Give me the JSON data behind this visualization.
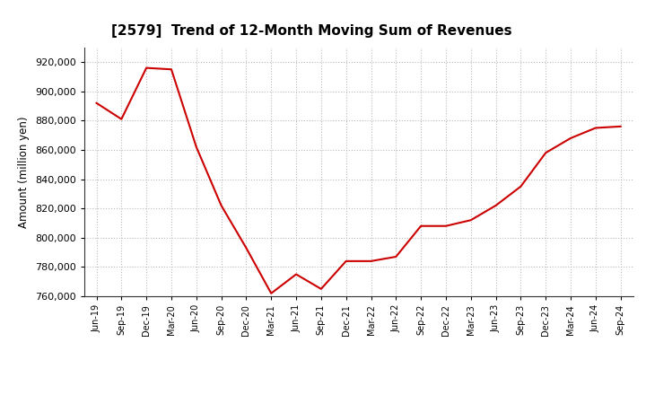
{
  "title": "[2579]  Trend of 12-Month Moving Sum of Revenues",
  "ylabel": "Amount (million yen)",
  "line_color": "#cc0000",
  "background_color": "#ffffff",
  "plot_bg_color": "#ffffff",
  "grid_color": "#bbbbbb",
  "x_labels": [
    "Jun-19",
    "Sep-19",
    "Dec-19",
    "Mar-20",
    "Jun-20",
    "Sep-20",
    "Dec-20",
    "Mar-21",
    "Jun-21",
    "Sep-21",
    "Dec-21",
    "Mar-22",
    "Jun-22",
    "Sep-22",
    "Dec-22",
    "Mar-23",
    "Jun-23",
    "Sep-23",
    "Dec-23",
    "Mar-24",
    "Jun-24",
    "Sep-24"
  ],
  "values": [
    892000,
    881000,
    916000,
    915000,
    862000,
    822000,
    793000,
    762000,
    775000,
    765000,
    784000,
    784000,
    787000,
    808000,
    808000,
    812000,
    822000,
    835000,
    858000,
    868000,
    875000,
    876000
  ],
  "ylim_min": 760000,
  "ylim_max": 930000,
  "yticks": [
    760000,
    780000,
    800000,
    820000,
    840000,
    860000,
    880000,
    900000,
    920000
  ]
}
